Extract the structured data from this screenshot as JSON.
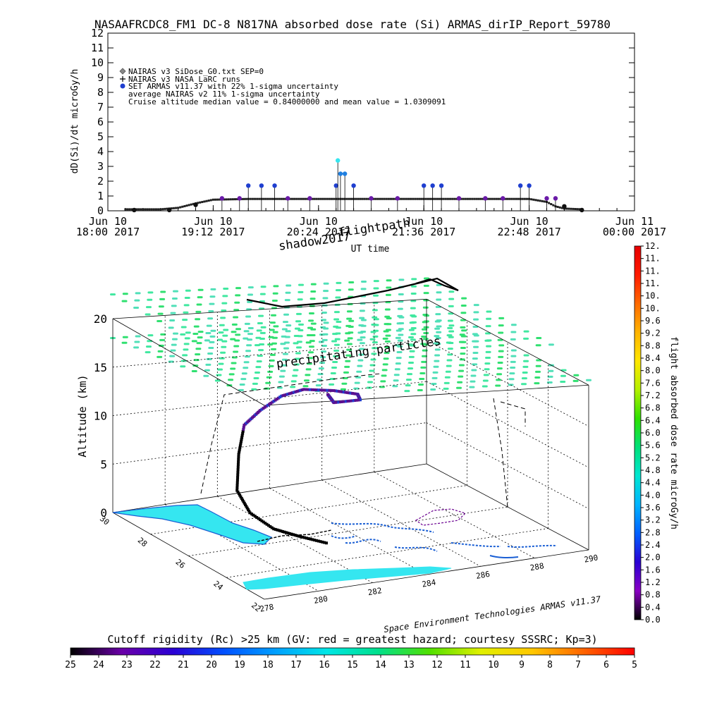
{
  "header": {
    "title": "NASAAFRCDC8_FM1 DC-8   N817NA absorbed dose rate (Si) ARMAS_dirIP_Report_59780"
  },
  "chart_data": [
    {
      "type": "scatter",
      "ylabel": "dD(Si)/dt microGy/h",
      "xlabel": "UT time",
      "ylim": [
        0,
        12
      ],
      "yticks": [
        0,
        1,
        2,
        3,
        4,
        5,
        6,
        7,
        8,
        9,
        10,
        11,
        12
      ],
      "xlim_hours": [
        18.0,
        24.0
      ],
      "xticks": [
        {
          "h": 18.0,
          "line1": "Jun 10",
          "line2": "18:00 2017"
        },
        {
          "h": 19.2,
          "line1": "Jun 10",
          "line2": "19:12 2017"
        },
        {
          "h": 20.4,
          "line1": "Jun 10",
          "line2": "20:24 2017"
        },
        {
          "h": 21.6,
          "line1": "Jun 10",
          "line2": "21:36 2017"
        },
        {
          "h": 22.8,
          "line1": "Jun 10",
          "line2": "22:48 2017"
        },
        {
          "h": 24.0,
          "line1": "Jun 11",
          "line2": "00:00 2017"
        }
      ],
      "legend": [
        "NAIRAS v3 SiDose_G0.txt SEP=0",
        "NAIRAS v3 NASA LaRC runs",
        "SET ARMAS v11.37 with 22% 1-sigma uncertainty",
        "average NAIRAS v2 11% 1-sigma uncertainty",
        "Cruise altitude median value = 0.84000000 and mean value = 1.0309091"
      ],
      "nairas_model": [
        [
          18.2,
          0.1
        ],
        [
          18.6,
          0.1
        ],
        [
          18.8,
          0.2
        ],
        [
          19.0,
          0.5
        ],
        [
          19.2,
          0.75
        ],
        [
          19.6,
          0.8
        ],
        [
          20.0,
          0.8
        ],
        [
          20.4,
          0.8
        ],
        [
          20.8,
          0.8
        ],
        [
          21.2,
          0.8
        ],
        [
          21.6,
          0.8
        ],
        [
          22.0,
          0.8
        ],
        [
          22.4,
          0.8
        ],
        [
          22.8,
          0.8
        ],
        [
          23.0,
          0.6
        ],
        [
          23.1,
          0.3
        ],
        [
          23.2,
          0.15
        ],
        [
          23.4,
          0.1
        ]
      ],
      "armas_points": [
        [
          18.3,
          0.05
        ],
        [
          18.7,
          0.05
        ],
        [
          19.0,
          0.4
        ],
        [
          19.3,
          0.84
        ],
        [
          19.5,
          0.84
        ],
        [
          19.6,
          1.7
        ],
        [
          19.75,
          1.7
        ],
        [
          19.9,
          1.7
        ],
        [
          20.05,
          0.84
        ],
        [
          20.3,
          0.84
        ],
        [
          20.6,
          1.7
        ],
        [
          20.62,
          3.4
        ],
        [
          20.65,
          2.5
        ],
        [
          20.7,
          2.5
        ],
        [
          20.8,
          1.7
        ],
        [
          21.0,
          0.84
        ],
        [
          21.3,
          0.84
        ],
        [
          21.6,
          1.7
        ],
        [
          21.7,
          1.7
        ],
        [
          21.8,
          1.7
        ],
        [
          22.0,
          0.84
        ],
        [
          22.3,
          0.84
        ],
        [
          22.5,
          0.84
        ],
        [
          22.7,
          1.7
        ],
        [
          22.8,
          1.7
        ],
        [
          23.0,
          0.84
        ],
        [
          23.1,
          0.84
        ],
        [
          23.2,
          0.3
        ],
        [
          23.4,
          0.05
        ]
      ],
      "dose_colorbar": {
        "ylabel": "flight absorbed dose rate microGy/h",
        "tick_labels": [
          "0.0",
          "0.4",
          "0.8",
          "1.2",
          "1.6",
          "2.0",
          "2.4",
          "2.8",
          "3.2",
          "3.6",
          "4.0",
          "4.4",
          "4.8",
          "5.2",
          "5.6",
          "6.0",
          "6.4",
          "6.8",
          "7.2",
          "7.6",
          "8.0",
          "8.4",
          "8.8",
          "9.2",
          "9.6",
          "10.",
          "10.",
          "11.",
          "11.",
          "11.",
          "12."
        ],
        "colors": [
          "#000000",
          "#8a00c4",
          "#2a00d4",
          "#0060ff",
          "#00b4ff",
          "#00e6d2",
          "#00e07a",
          "#2ee000",
          "#b4f000",
          "#ffe600",
          "#ffb400",
          "#ff6a00",
          "#ff1a00",
          "#e60000"
        ]
      },
      "annotations": {
        "shadow": "shadow2017",
        "flightpath": "flightpath",
        "precipitating": "precipitating particles",
        "credit": "Space Environment Technologies ARMAS v11.37"
      },
      "altitude_axis": {
        "label": "Altitude (km)",
        "ticks": [
          0,
          5,
          10,
          15,
          20
        ]
      },
      "latitude_ticks": [
        "30",
        "28",
        "26",
        "24",
        "22"
      ],
      "longitude_ticks": [
        "278",
        "280",
        "282",
        "284",
        "286",
        "288",
        "290"
      ],
      "flight_track": [
        [
          282.6,
          25.2,
          0.3
        ],
        [
          282.0,
          25.8,
          0.6
        ],
        [
          281.2,
          26.0,
          1.5
        ],
        [
          280.6,
          26.4,
          3.0
        ],
        [
          280.4,
          26.8,
          5.0
        ],
        [
          280.9,
          27.4,
          8.0
        ],
        [
          281.4,
          27.8,
          10.5
        ],
        [
          282.6,
          28.6,
          10.8
        ],
        [
          284.0,
          29.4,
          11.0
        ],
        [
          285.0,
          29.6,
          11.2
        ],
        [
          286.0,
          29.4,
          11.0
        ],
        [
          286.6,
          29.0,
          10.9
        ],
        [
          286.4,
          28.6,
          10.8
        ],
        [
          285.4,
          28.6,
          10.8
        ],
        [
          285.6,
          29.2,
          11.0
        ]
      ]
    },
    {
      "type": "heatmap",
      "title": "Cutoff rigidity (Rc) >25 km (GV: red = greatest hazard; courtesy SSSRC; Kp=3)",
      "tick_labels": [
        "25",
        "24",
        "23",
        "22",
        "21",
        "20",
        "19",
        "18",
        "17",
        "16",
        "15",
        "14",
        "13",
        "12",
        "11",
        "10",
        "9",
        "8",
        "7",
        "6",
        "5"
      ],
      "colors": [
        "#000000",
        "#6a00a8",
        "#2a00d4",
        "#0050ff",
        "#00a0ff",
        "#00e6e6",
        "#00e08c",
        "#50e000",
        "#e0f000",
        "#ffc800",
        "#ff6400",
        "#ff0000"
      ]
    }
  ]
}
